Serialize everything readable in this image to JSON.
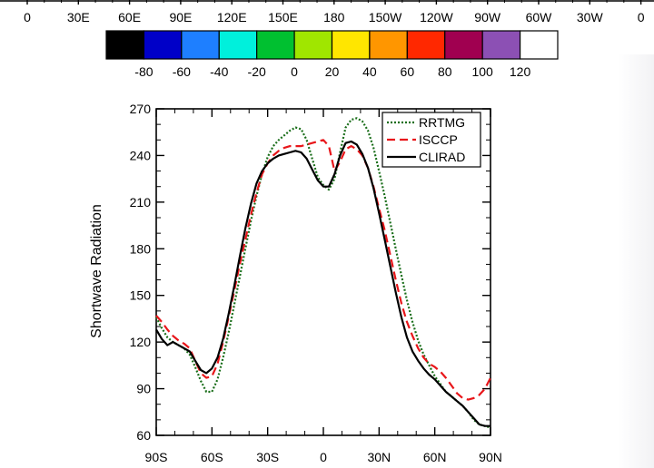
{
  "top_axis": {
    "labels": [
      "0",
      "30E",
      "60E",
      "90E",
      "120E",
      "150E",
      "180",
      "150W",
      "120W",
      "90W",
      "60W",
      "30W",
      "0"
    ]
  },
  "colorbar": {
    "colors": [
      "#000000",
      "#0000c8",
      "#1e7fff",
      "#00f0dc",
      "#00c030",
      "#a0e600",
      "#ffe600",
      "#ff9600",
      "#ff2800",
      "#a00050",
      "#8c50b4",
      "#ffffff"
    ],
    "labels": [
      "-80",
      "-60",
      "-40",
      "-20",
      "0",
      "20",
      "40",
      "60",
      "80",
      "100",
      "120"
    ]
  },
  "chart_data": {
    "type": "line",
    "ylabel": "Shortwave Radiation",
    "xlim": [
      -90,
      90
    ],
    "ylim": [
      60,
      270
    ],
    "xticks": [
      -90,
      -60,
      -30,
      0,
      30,
      60,
      90
    ],
    "xtick_labels": [
      "90S",
      "60S",
      "30S",
      "0",
      "30N",
      "60N",
      "90N"
    ],
    "yticks": [
      60,
      90,
      120,
      150,
      180,
      210,
      240,
      270
    ],
    "ytick_labels": [
      "60",
      "90",
      "120",
      "150",
      "180",
      "210",
      "240",
      "270"
    ],
    "legend_position": "top-right",
    "series": [
      {
        "name": "RRTMG",
        "color": "#1a6e1a",
        "dash": "dotted",
        "x": [
          -90,
          -87,
          -84,
          -81,
          -78,
          -75,
          -72,
          -69,
          -66,
          -63,
          -60,
          -57,
          -54,
          -51,
          -48,
          -45,
          -42,
          -39,
          -36,
          -33,
          -30,
          -27,
          -24,
          -21,
          -18,
          -15,
          -12,
          -9,
          -6,
          -3,
          0,
          3,
          6,
          9,
          12,
          15,
          18,
          21,
          24,
          27,
          30,
          33,
          36,
          39,
          42,
          45,
          48,
          51,
          54,
          57,
          60,
          63,
          66,
          69,
          72,
          75,
          78,
          81,
          84,
          87,
          90
        ],
        "y": [
          136,
          129,
          123,
          120,
          118,
          116,
          112,
          104,
          95,
          88,
          88,
          96,
          110,
          126,
          144,
          162,
          180,
          198,
          214,
          228,
          239,
          246,
          250,
          253,
          256,
          258,
          257,
          250,
          238,
          226,
          221,
          218,
          225,
          242,
          258,
          263,
          264,
          262,
          256,
          245,
          230,
          214,
          197,
          180,
          163,
          147,
          133,
          121,
          112,
          105,
          98,
          93,
          88,
          85,
          82,
          79,
          75,
          70,
          67,
          66,
          65
        ]
      },
      {
        "name": "ISCCP",
        "color": "#e8161a",
        "dash": "dashed",
        "x": [
          -90,
          -87,
          -84,
          -81,
          -78,
          -75,
          -72,
          -69,
          -66,
          -63,
          -60,
          -57,
          -54,
          -51,
          -48,
          -45,
          -42,
          -39,
          -36,
          -33,
          -30,
          -27,
          -24,
          -21,
          -18,
          -15,
          -12,
          -9,
          -6,
          -3,
          0,
          3,
          6,
          9,
          12,
          15,
          18,
          21,
          24,
          27,
          30,
          33,
          36,
          39,
          42,
          45,
          48,
          51,
          54,
          57,
          60,
          63,
          66,
          69,
          72,
          75,
          78,
          81,
          84,
          87,
          90
        ],
        "y": [
          137,
          133,
          128,
          124,
          121,
          119,
          116,
          108,
          100,
          97,
          98,
          106,
          120,
          136,
          153,
          170,
          186,
          202,
          216,
          228,
          235,
          240,
          243,
          245,
          246,
          246,
          246,
          247,
          248,
          249,
          250,
          246,
          230,
          236,
          244,
          246,
          244,
          240,
          232,
          220,
          206,
          192,
          176,
          160,
          145,
          133,
          124,
          116,
          110,
          106,
          104,
          101,
          97,
          92,
          87,
          84,
          83,
          84,
          86,
          90,
          97
        ]
      },
      {
        "name": "CLIRAD",
        "color": "#000000",
        "dash": "solid",
        "x": [
          -90,
          -87,
          -84,
          -81,
          -78,
          -75,
          -72,
          -69,
          -66,
          -63,
          -60,
          -57,
          -54,
          -51,
          -48,
          -45,
          -42,
          -39,
          -36,
          -33,
          -30,
          -27,
          -24,
          -21,
          -18,
          -15,
          -12,
          -9,
          -6,
          -3,
          0,
          3,
          6,
          9,
          12,
          15,
          18,
          21,
          24,
          27,
          30,
          33,
          36,
          39,
          42,
          45,
          48,
          51,
          54,
          57,
          60,
          63,
          66,
          69,
          72,
          75,
          78,
          81,
          84,
          87,
          90
        ],
        "y": [
          128,
          122,
          118,
          120,
          118,
          116,
          114,
          108,
          102,
          100,
          103,
          110,
          122,
          138,
          156,
          175,
          193,
          209,
          222,
          230,
          235,
          238,
          240,
          241,
          242,
          243,
          242,
          238,
          231,
          224,
          220,
          220,
          228,
          240,
          248,
          249,
          247,
          241,
          232,
          219,
          203,
          186,
          169,
          152,
          136,
          123,
          114,
          108,
          103,
          99,
          96,
          92,
          88,
          85,
          82,
          79,
          75,
          71,
          67,
          66,
          66
        ]
      }
    ]
  }
}
